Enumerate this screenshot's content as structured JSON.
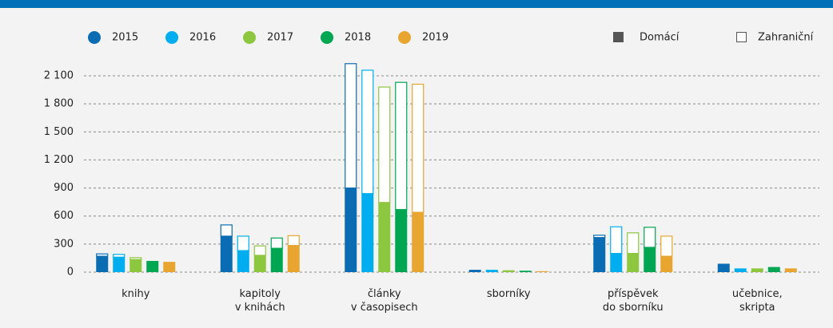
{
  "chart_data": {
    "type": "grouped-stacked-bar",
    "categories": [
      [
        "knihy"
      ],
      [
        "kapitoly",
        "v knihách"
      ],
      [
        "články",
        "v časopisech"
      ],
      [
        "sborníky"
      ],
      [
        "příspěvek",
        "do sborníku"
      ],
      [
        "učebnice,",
        "skripta"
      ]
    ],
    "stacks": [
      "Domácí",
      "Zahraniční"
    ],
    "series": [
      {
        "name": "2015",
        "color": "#0a6db3",
        "domestic": [
          170,
          385,
          900,
          25,
          370,
          90
        ],
        "foreign": [
          25,
          120,
          1330,
          0,
          25,
          0
        ]
      },
      {
        "name": "2016",
        "color": "#00aeef",
        "domestic": [
          160,
          230,
          840,
          25,
          200,
          40
        ],
        "foreign": [
          30,
          155,
          1320,
          0,
          285,
          0
        ]
      },
      {
        "name": "2017",
        "color": "#8dc63f",
        "domestic": [
          135,
          180,
          745,
          20,
          200,
          40
        ],
        "foreign": [
          20,
          100,
          1235,
          0,
          220,
          0
        ]
      },
      {
        "name": "2018",
        "color": "#00a651",
        "domestic": [
          120,
          255,
          670,
          15,
          265,
          55
        ],
        "foreign": [
          0,
          110,
          1360,
          0,
          215,
          0
        ]
      },
      {
        "name": "2019",
        "color": "#e8a530",
        "domestic": [
          110,
          285,
          640,
          10,
          170,
          40
        ],
        "foreign": [
          0,
          105,
          1370,
          0,
          215,
          0
        ]
      }
    ],
    "ylim": [
      0,
      2100
    ],
    "yticks": [
      0,
      300,
      600,
      900,
      {
        "value": 1200,
        "label": "1 200"
      },
      {
        "value": 1500,
        "label": "1 500"
      },
      {
        "value": 1800,
        "label": "1 800"
      },
      {
        "value": 2100,
        "label": "2 100"
      }
    ],
    "grid": true
  }
}
